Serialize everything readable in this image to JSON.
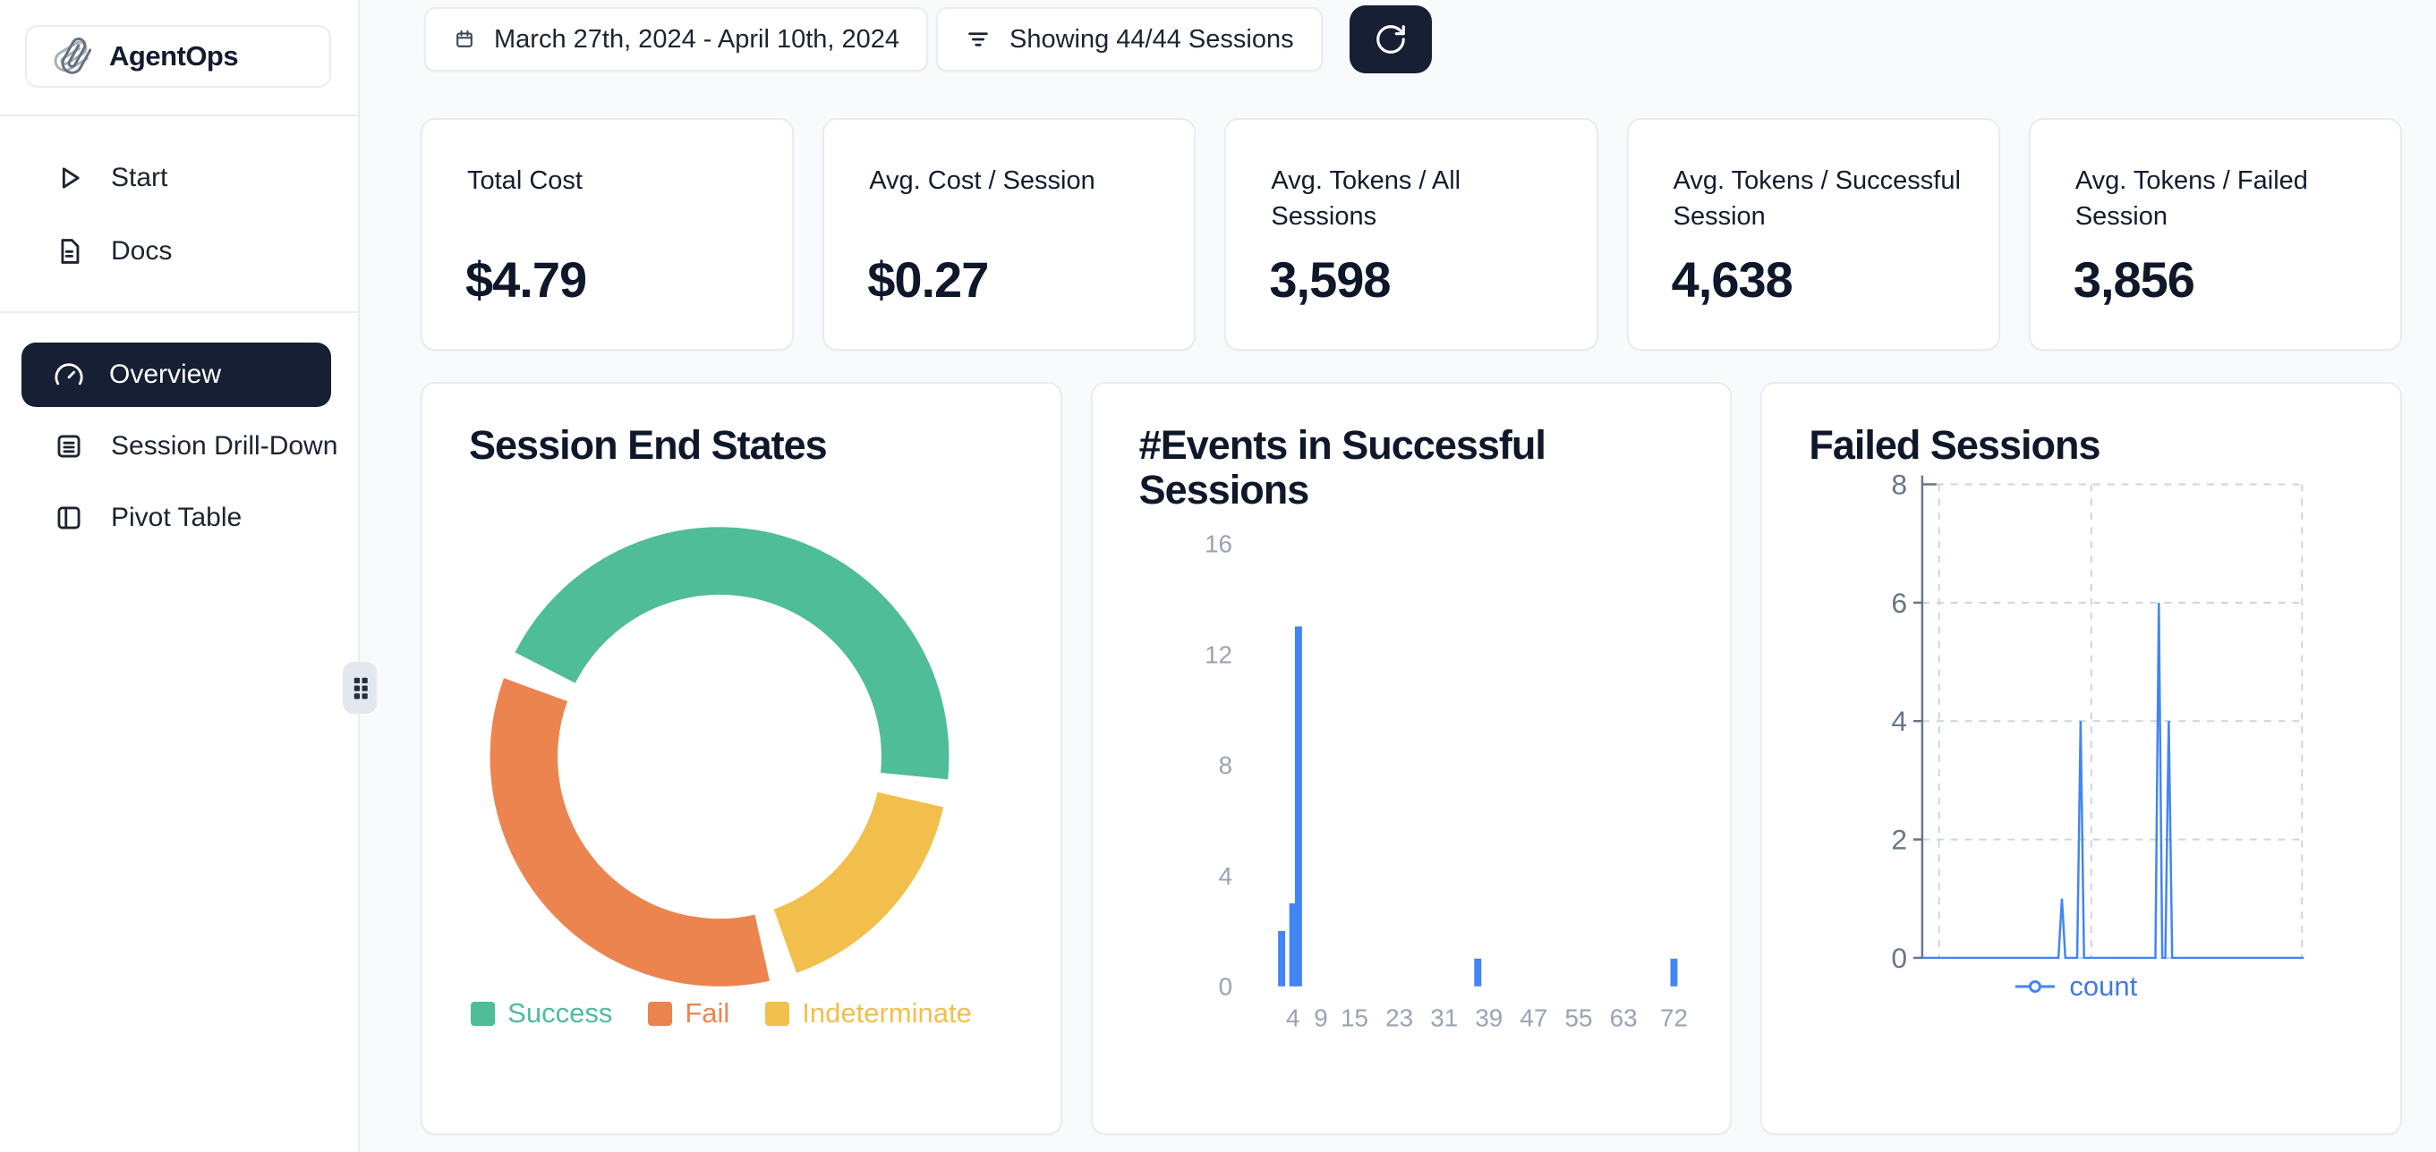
{
  "app": {
    "name": "AgentOps",
    "logo_icon": "paperclip-icon"
  },
  "sidebar": {
    "items_top": [
      {
        "label": "Start",
        "icon": "play-icon"
      },
      {
        "label": "Docs",
        "icon": "document-icon"
      }
    ],
    "items_main": [
      {
        "label": "Overview",
        "icon": "gauge-icon",
        "active": true
      },
      {
        "label": "Session Drill-Down",
        "icon": "list-box-icon",
        "active": false
      },
      {
        "label": "Pivot Table",
        "icon": "panel-left-icon",
        "active": false
      }
    ],
    "resize_handle_icon": "grip-dots-icon"
  },
  "toolbar": {
    "date_range_label": "March 27th, 2024 - April 10th, 2024",
    "date_range_icon": "calendar-icon",
    "filter_label": "Showing 44/44 Sessions",
    "filter_icon": "filter-lines-icon",
    "refresh_icon": "refresh-icon"
  },
  "stats": [
    {
      "label": "Total Cost",
      "value": "$4.79"
    },
    {
      "label": "Avg. Cost / Session",
      "value": "$0.27"
    },
    {
      "label": "Avg. Tokens / All Sessions",
      "value": "3,598"
    },
    {
      "label": "Avg. Tokens / Successful Session",
      "value": "4,638"
    },
    {
      "label": "Avg. Tokens / Failed Session",
      "value": "3,856"
    }
  ],
  "colors": {
    "page_bg": "#f8fafc",
    "card_border": "#e8edf3",
    "dark_navy": "#161f33",
    "text_primary": "#0f172a",
    "axis_text_light": "#9aa3b2",
    "axis_text_dark": "#697586",
    "success_green": "#4fbd97",
    "fail_orange": "#ec8450",
    "indeterminate_yellow": "#f2bf4d",
    "series_blue": "#4285f4"
  },
  "chart_data": [
    {
      "type": "pie",
      "title": "Session End States",
      "labels": [
        "Success",
        "Fail",
        "Indeterminate"
      ],
      "values_pct": [
        44,
        34,
        16
      ],
      "colors": [
        "#4fbd97",
        "#ec8450",
        "#f2bf4d"
      ],
      "donut": true,
      "start_angle_deg": -63,
      "segment_gap_deg": 7,
      "clockwise_order": [
        "Success",
        "Indeterminate",
        "Fail"
      ],
      "legend_position": "bottom"
    },
    {
      "type": "bar",
      "title": "#Events in Successful Sessions",
      "x": [
        2,
        4,
        5,
        37,
        72
      ],
      "values": [
        2,
        3,
        13,
        1,
        1
      ],
      "xticks": [
        4,
        9,
        15,
        23,
        31,
        39,
        47,
        55,
        63,
        72
      ],
      "yticks": [
        0,
        4,
        8,
        12,
        16
      ],
      "xlim": [
        0,
        76
      ],
      "ylim": [
        0,
        16
      ],
      "bar_color": "#4285f4",
      "grid": false,
      "xlabel": "",
      "ylabel": ""
    },
    {
      "type": "line",
      "title": "Failed Sessions",
      "series": [
        {
          "name": "count",
          "color": "#4285f4",
          "points_pct_x": [
            [
              0,
              0
            ],
            [
              35.7,
              0
            ],
            [
              36.6,
              1
            ],
            [
              37.5,
              0
            ],
            [
              40.6,
              0
            ],
            [
              41.5,
              4
            ],
            [
              42.4,
              0
            ],
            [
              61.1,
              0
            ],
            [
              62.0,
              6
            ],
            [
              62.9,
              0
            ],
            [
              63.7,
              0
            ],
            [
              64.6,
              4
            ],
            [
              65.5,
              0
            ],
            [
              100,
              0
            ]
          ]
        }
      ],
      "yticks": [
        0,
        2,
        4,
        6,
        8
      ],
      "ylim": [
        0,
        8
      ],
      "x_tick_labels": [],
      "grid_dashed": true,
      "vgrid_pct": [
        4.4,
        44.3,
        99.5
      ],
      "legend_position": "bottom"
    }
  ]
}
